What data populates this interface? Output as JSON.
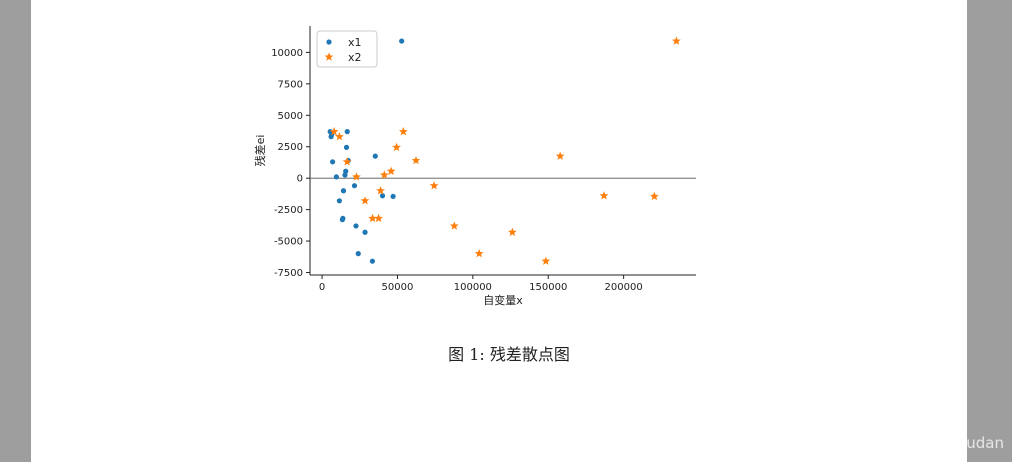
{
  "caption": "图 1: 残差散点图",
  "watermark": "https://blog.csdn.net/Caiqiudan",
  "chart_data": {
    "type": "scatter",
    "xlabel": "自变量x",
    "ylabel": "残差ei",
    "xlim": [
      -8000,
      248000
    ],
    "ylim": [
      -7700,
      12100
    ],
    "xticks": [
      0,
      50000,
      100000,
      150000,
      200000
    ],
    "yticks": [
      -7500,
      -5000,
      -2500,
      0,
      2500,
      5000,
      7500,
      10000
    ],
    "zero_line": true,
    "legend_position": "top-left",
    "series": [
      {
        "name": "x1",
        "marker": "circle",
        "color": "#1f77b4",
        "points": [
          [
            5400,
            3700
          ],
          [
            6000,
            3300
          ],
          [
            7000,
            1300
          ],
          [
            9500,
            100
          ],
          [
            11500,
            -1800
          ],
          [
            13800,
            -3200
          ],
          [
            15200,
            250
          ],
          [
            15700,
            550
          ],
          [
            16200,
            2450
          ],
          [
            16700,
            3700
          ],
          [
            14200,
            -1000
          ],
          [
            17400,
            1400
          ],
          [
            21500,
            -600
          ],
          [
            22500,
            -3800
          ],
          [
            24000,
            -6000
          ],
          [
            28500,
            -4300
          ],
          [
            33400,
            -6600
          ],
          [
            35300,
            1750
          ],
          [
            40100,
            -1400
          ],
          [
            47100,
            -1450
          ],
          [
            52800,
            10900
          ],
          [
            13500,
            -3300
          ],
          [
            6500,
            3500
          ]
        ]
      },
      {
        "name": "x2",
        "marker": "star",
        "color": "#ff7f0e",
        "points": [
          [
            8000,
            3700
          ],
          [
            11500,
            3300
          ],
          [
            16600,
            1300
          ],
          [
            22800,
            100
          ],
          [
            28500,
            -1800
          ],
          [
            33500,
            -3200
          ],
          [
            37500,
            -3200
          ],
          [
            38800,
            -1000
          ],
          [
            41300,
            250
          ],
          [
            45800,
            550
          ],
          [
            49400,
            2450
          ],
          [
            53900,
            3700
          ],
          [
            62300,
            1400
          ],
          [
            74300,
            -600
          ],
          [
            87700,
            -3800
          ],
          [
            104200,
            -6000
          ],
          [
            126200,
            -4300
          ],
          [
            148400,
            -6600
          ],
          [
            157900,
            1750
          ],
          [
            187000,
            -1400
          ],
          [
            220400,
            -1450
          ],
          [
            235000,
            10900
          ]
        ]
      }
    ]
  }
}
